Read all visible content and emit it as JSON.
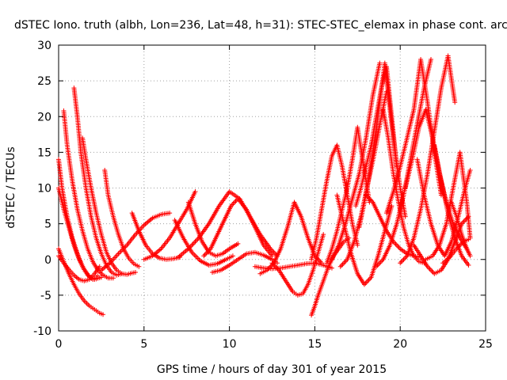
{
  "chart_data": {
    "type": "scatter",
    "title": "dSTEC Iono. truth (albh, Lon=236, Lat=48, h=31): STEC-STEC_elemax in phase cont. arc",
    "xlabel": "GPS time / hours of day 301 of year 2015",
    "ylabel": "dSTEC  / TECUs",
    "xlim": [
      0,
      25
    ],
    "ylim": [
      -10,
      30
    ],
    "xticks": [
      0,
      5,
      10,
      15,
      20,
      25
    ],
    "yticks": [
      -10,
      -5,
      0,
      5,
      10,
      15,
      20,
      25,
      30
    ],
    "grid": true,
    "marker": "+",
    "color": "#ff0000",
    "series": [
      {
        "x": [
          0.0,
          0.3,
          0.6,
          0.9,
          1.2,
          1.5,
          1.8,
          2.1,
          2.4,
          2.6
        ],
        "y": [
          1.5,
          -0.3,
          -2.0,
          -3.5,
          -4.8,
          -5.8,
          -6.5,
          -7.0,
          -7.5,
          -7.7
        ]
      },
      {
        "x": [
          0.0,
          0.2,
          0.5,
          0.8,
          1.1,
          1.4,
          1.7,
          2.0,
          2.3
        ],
        "y": [
          14.0,
          10.0,
          6.0,
          3.0,
          0.8,
          -1.0,
          -2.2,
          -2.8,
          -2.3
        ]
      },
      {
        "x": [
          0.0,
          0.3,
          0.6,
          0.9,
          1.2,
          1.5,
          1.8,
          2.1,
          2.5
        ],
        "y": [
          10.0,
          7.0,
          4.5,
          2.0,
          0.0,
          -1.4,
          -2.4,
          -2.8,
          -2.5
        ]
      },
      {
        "x": [
          0.0,
          0.3,
          0.6,
          0.9,
          1.2,
          1.5,
          1.8,
          2.1,
          2.4
        ],
        "y": [
          0.5,
          -0.5,
          -1.4,
          -2.2,
          -2.8,
          -3.0,
          -2.8,
          -2.0,
          -1.0
        ]
      },
      {
        "x": [
          0.3,
          0.5,
          0.8,
          1.1,
          1.4,
          1.7,
          2.0,
          2.3,
          2.6,
          2.9,
          3.2
        ],
        "y": [
          20.8,
          16.0,
          11.0,
          7.0,
          4.0,
          1.5,
          -0.3,
          -1.5,
          -2.2,
          -2.6,
          -2.6
        ]
      },
      {
        "x": [
          0.9,
          1.1,
          1.3,
          1.6,
          1.9,
          2.2,
          2.5,
          2.8,
          3.1,
          3.4,
          3.7
        ],
        "y": [
          24.0,
          20.0,
          15.0,
          10.0,
          6.0,
          3.0,
          0.8,
          -0.8,
          -1.8,
          -2.2,
          -2.0
        ]
      },
      {
        "x": [
          1.4,
          1.6,
          1.9,
          2.2,
          2.5,
          2.8,
          3.1,
          3.4,
          3.7,
          4.0,
          4.3,
          4.5
        ],
        "y": [
          17.0,
          14.0,
          10.0,
          6.5,
          3.5,
          1.0,
          -0.5,
          -1.5,
          -2.0,
          -2.1,
          -1.9,
          -1.8
        ]
      },
      {
        "x": [
          2.7,
          2.9,
          3.2,
          3.5,
          3.8,
          4.1,
          4.4,
          4.7
        ],
        "y": [
          12.5,
          9.0,
          6.0,
          3.5,
          1.5,
          0.2,
          -0.6,
          -1.0
        ]
      },
      {
        "x": [
          2.5,
          3.0,
          3.5,
          4.0,
          4.5,
          5.0,
          5.5,
          6.0,
          6.5
        ],
        "y": [
          -1.5,
          -0.5,
          0.8,
          2.0,
          3.5,
          4.8,
          5.8,
          6.3,
          6.5
        ]
      },
      {
        "x": [
          4.3,
          4.7,
          5.1,
          5.5,
          5.9,
          6.3,
          6.7,
          7.1
        ],
        "y": [
          6.5,
          4.0,
          2.0,
          0.8,
          0.2,
          0.0,
          0.1,
          0.3
        ]
      },
      {
        "x": [
          5.0,
          5.5,
          6.0,
          6.5,
          7.0,
          7.5,
          8.0
        ],
        "y": [
          0.0,
          0.5,
          1.5,
          3.0,
          5.0,
          7.0,
          9.5
        ]
      },
      {
        "x": [
          6.8,
          7.3,
          7.8,
          8.3,
          8.8,
          9.3,
          9.8,
          10.2
        ],
        "y": [
          5.5,
          3.0,
          1.0,
          -0.2,
          -0.8,
          -0.6,
          0.0,
          0.5
        ]
      },
      {
        "x": [
          7.6,
          8.0,
          8.4,
          8.8,
          9.2,
          9.6,
          10.0,
          10.5
        ],
        "y": [
          8.0,
          5.0,
          2.5,
          1.0,
          0.5,
          0.8,
          1.5,
          2.2
        ]
      },
      {
        "x": [
          7.0,
          7.6,
          8.2,
          8.8,
          9.4,
          10.0,
          10.6,
          11.2,
          11.8,
          12.4,
          12.8
        ],
        "y": [
          0.3,
          1.5,
          3.0,
          5.0,
          7.5,
          9.5,
          8.5,
          6.0,
          3.5,
          1.5,
          0.5
        ]
      },
      {
        "x": [
          8.5,
          8.9,
          9.3,
          9.7,
          10.1,
          10.5,
          11.0,
          11.5,
          12.0,
          12.5
        ],
        "y": [
          0.5,
          1.5,
          3.5,
          5.5,
          7.5,
          8.5,
          7.0,
          4.5,
          2.0,
          0.5
        ]
      },
      {
        "x": [
          9.0,
          9.5,
          10.0,
          10.5,
          11.0,
          11.5,
          12.0,
          12.5,
          12.8
        ],
        "y": [
          -1.8,
          -1.5,
          -0.8,
          0.0,
          0.8,
          1.0,
          0.6,
          0.0,
          -0.5
        ]
      },
      {
        "x": [
          11.8,
          12.2,
          12.6,
          13.0,
          13.4,
          13.8,
          14.2,
          14.6,
          15.0,
          15.4
        ],
        "y": [
          -2.0,
          -1.5,
          -0.5,
          1.5,
          4.5,
          8.0,
          6.0,
          3.0,
          0.5,
          -0.5
        ]
      },
      {
        "x": [
          11.5,
          12.0,
          12.5,
          13.0,
          13.5,
          14.0,
          14.5,
          15.0,
          15.5,
          16.0
        ],
        "y": [
          -1.0,
          -1.2,
          -1.3,
          -1.2,
          -1.0,
          -0.8,
          -0.6,
          -0.5,
          -0.8,
          -1.2
        ]
      },
      {
        "x": [
          12.5,
          12.9,
          13.3,
          13.7,
          14.0,
          14.3,
          14.6,
          14.9,
          15.2,
          15.5
        ],
        "y": [
          -0.5,
          -1.5,
          -3.0,
          -4.5,
          -5.0,
          -4.8,
          -3.5,
          -1.5,
          1.0,
          3.5
        ]
      },
      {
        "x": [
          14.8,
          15.0,
          15.2,
          15.5,
          15.8,
          16.1,
          16.4,
          16.7,
          17.0
        ],
        "y": [
          -7.8,
          -6.5,
          -5.0,
          -3.0,
          -1.0,
          0.5,
          1.5,
          2.5,
          3.0
        ]
      },
      {
        "x": [
          14.8,
          15.1,
          15.4,
          15.7,
          16.0,
          16.3,
          16.6,
          16.9,
          17.2,
          17.5
        ],
        "y": [
          0.0,
          3.0,
          7.0,
          11.0,
          14.5,
          16.0,
          13.0,
          9.0,
          5.0,
          2.0
        ]
      },
      {
        "x": [
          15.7,
          16.0,
          16.3,
          16.6,
          16.9,
          17.2,
          17.5,
          17.8,
          18.2
        ],
        "y": [
          -0.5,
          1.5,
          4.0,
          7.0,
          10.0,
          14.0,
          18.5,
          14.0,
          8.0
        ]
      },
      {
        "x": [
          16.0,
          16.4,
          16.8,
          17.2,
          17.6,
          18.0,
          18.4,
          18.8
        ],
        "y": [
          0.0,
          2.0,
          5.0,
          8.5,
          12.0,
          17.0,
          23.0,
          27.5
        ]
      },
      {
        "x": [
          16.5,
          16.9,
          17.3,
          17.7,
          18.1,
          18.5,
          18.9,
          19.2
        ],
        "y": [
          -1.0,
          0.0,
          2.5,
          6.0,
          10.5,
          15.0,
          20.0,
          23.5
        ]
      },
      {
        "x": [
          16.3,
          16.7,
          17.1,
          17.5,
          17.9,
          18.3,
          18.7,
          19.1,
          19.5
        ],
        "y": [
          9.0,
          5.0,
          1.0,
          -2.0,
          -3.5,
          -2.5,
          0.5,
          4.0,
          7.5
        ]
      },
      {
        "x": [
          17.4,
          17.7,
          18.0,
          18.3,
          18.6,
          18.9,
          19.2,
          19.5,
          19.8
        ],
        "y": [
          7.5,
          10.0,
          13.0,
          16.0,
          20.0,
          24.0,
          27.0,
          20.0,
          13.0
        ]
      },
      {
        "x": [
          17.6,
          17.9,
          18.2,
          18.5,
          18.8,
          19.1,
          19.4,
          19.7,
          20.0,
          20.3
        ],
        "y": [
          4.5,
          8.0,
          12.0,
          16.5,
          22.0,
          27.5,
          21.0,
          15.0,
          10.0,
          6.0
        ]
      },
      {
        "x": [
          18.0,
          18.4,
          18.8,
          19.2,
          19.6,
          20.0,
          20.4,
          20.8,
          21.2
        ],
        "y": [
          9.0,
          8.0,
          6.0,
          4.0,
          2.5,
          1.5,
          0.8,
          0.5,
          0.3
        ]
      },
      {
        "x": [
          19.0,
          19.3,
          19.6,
          19.9,
          20.2,
          20.5,
          20.8,
          21.1,
          21.4
        ],
        "y": [
          21.0,
          17.0,
          12.0,
          8.0,
          4.5,
          2.0,
          0.5,
          -0.3,
          -0.5
        ]
      },
      {
        "x": [
          18.6,
          19.0,
          19.4,
          19.8,
          20.2,
          20.6,
          21.0,
          21.4,
          21.8
        ],
        "y": [
          -1.0,
          0.0,
          2.0,
          5.0,
          9.0,
          14.0,
          19.0,
          24.0,
          28.0
        ]
      },
      {
        "x": [
          19.2,
          19.6,
          20.0,
          20.4,
          20.8,
          21.2,
          21.6,
          22.0,
          22.4
        ],
        "y": [
          6.5,
          9.5,
          13.0,
          17.0,
          21.0,
          28.0,
          22.0,
          15.0,
          9.0
        ]
      },
      {
        "x": [
          20.0,
          20.4,
          20.8,
          21.2,
          21.6,
          22.0,
          22.4,
          22.8,
          23.2
        ],
        "y": [
          -0.5,
          0.5,
          3.0,
          7.0,
          12.0,
          18.0,
          24.0,
          28.5,
          22.0
        ]
      },
      {
        "x": [
          20.3,
          20.7,
          21.1,
          21.5,
          21.9,
          22.3,
          22.7,
          23.1,
          23.5,
          23.9
        ],
        "y": [
          10.0,
          14.0,
          18.5,
          21.0,
          17.0,
          12.0,
          8.0,
          5.0,
          3.0,
          1.5
        ]
      },
      {
        "x": [
          21.0,
          21.4,
          21.8,
          22.2,
          22.6,
          23.0,
          23.4,
          23.8,
          24.1
        ],
        "y": [
          14.0,
          9.0,
          5.0,
          2.0,
          0.5,
          2.5,
          6.0,
          10.0,
          12.5
        ]
      },
      {
        "x": [
          20.8,
          21.2,
          21.6,
          22.0,
          22.4,
          22.8,
          23.2,
          23.6,
          24.0
        ],
        "y": [
          2.0,
          0.5,
          -1.0,
          -2.0,
          -1.5,
          0.0,
          2.5,
          5.0,
          6.0
        ]
      },
      {
        "x": [
          21.5,
          21.9,
          22.3,
          22.7,
          23.1,
          23.5,
          23.9,
          24.1
        ],
        "y": [
          0.0,
          0.5,
          2.0,
          5.0,
          10.0,
          15.0,
          8.0,
          3.0
        ]
      },
      {
        "x": [
          22.0,
          22.4,
          22.8,
          23.2,
          23.6,
          24.0
        ],
        "y": [
          16.0,
          11.0,
          6.5,
          3.0,
          0.5,
          -0.8
        ]
      },
      {
        "x": [
          22.5,
          22.9,
          23.3,
          23.7,
          24.0
        ],
        "y": [
          -0.5,
          0.3,
          1.5,
          2.5,
          2.8
        ]
      },
      {
        "x": [
          23.0,
          23.3,
          23.6,
          23.9,
          24.1
        ],
        "y": [
          8.0,
          6.0,
          3.5,
          1.5,
          0.5
        ]
      }
    ]
  }
}
